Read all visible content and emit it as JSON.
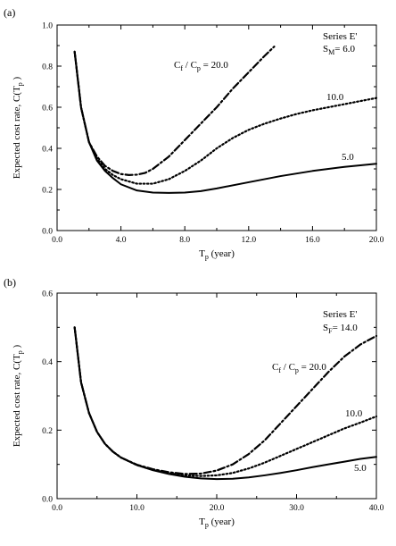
{
  "figure": {
    "panels": [
      "(a)",
      "(b)"
    ]
  },
  "chart_data": [
    {
      "type": "line",
      "panel_label": "(a)",
      "xlabel": {
        "main": "T",
        "sub": "p",
        "rest": " (year)"
      },
      "ylabel": {
        "text": "Expected cost rate,  C(T",
        "sub": "p",
        "close": " )"
      },
      "xlim": [
        0,
        20
      ],
      "ylim": [
        0,
        1.0
      ],
      "xticks": [
        0,
        4,
        8,
        12,
        16,
        20
      ],
      "xtick_labels": [
        "0.0",
        "4.0",
        "8.0",
        "12.0",
        "16.0",
        "20.0"
      ],
      "yticks": [
        0,
        0.2,
        0.4,
        0.6,
        0.8,
        1.0
      ],
      "ytick_labels": [
        "0.0",
        "0.2",
        "0.4",
        "0.6",
        "0.8",
        "1.0"
      ],
      "series_title": "Series E'",
      "param": {
        "symbol": "S",
        "sub": "M",
        "value": "= 6.0"
      },
      "ratio_label": {
        "c1": "C",
        "s1": "f",
        "mid": " / C",
        "s2": "p",
        "end": " = 20.0"
      },
      "series": [
        {
          "label": "5.0",
          "style": "solid",
          "x": [
            1.1,
            1.5,
            2,
            2.5,
            3,
            3.5,
            4,
            5,
            6,
            7,
            8,
            9,
            10,
            12,
            14,
            16,
            18,
            20
          ],
          "y": [
            0.87,
            0.6,
            0.43,
            0.34,
            0.29,
            0.255,
            0.225,
            0.195,
            0.185,
            0.183,
            0.185,
            0.192,
            0.205,
            0.235,
            0.265,
            0.29,
            0.31,
            0.325
          ]
        },
        {
          "label": "10.0",
          "style": "dotted",
          "x": [
            1.1,
            1.5,
            2,
            2.5,
            3,
            3.5,
            4,
            5,
            6,
            7,
            8,
            9,
            10,
            11,
            12,
            13,
            14,
            15,
            16,
            17,
            18,
            19,
            20
          ],
          "y": [
            0.87,
            0.6,
            0.43,
            0.35,
            0.3,
            0.27,
            0.25,
            0.228,
            0.228,
            0.25,
            0.29,
            0.34,
            0.4,
            0.45,
            0.49,
            0.52,
            0.545,
            0.567,
            0.585,
            0.6,
            0.615,
            0.63,
            0.645
          ]
        },
        {
          "label": "20.0",
          "style": "dashdot",
          "x": [
            1.1,
            1.5,
            2,
            2.5,
            3,
            3.5,
            4,
            4.5,
            5,
            5.5,
            6,
            7,
            8,
            9,
            10,
            11,
            12,
            13,
            13.6
          ],
          "y": [
            0.87,
            0.6,
            0.43,
            0.36,
            0.315,
            0.29,
            0.275,
            0.27,
            0.272,
            0.28,
            0.3,
            0.36,
            0.44,
            0.52,
            0.6,
            0.69,
            0.77,
            0.85,
            0.895
          ]
        }
      ]
    },
    {
      "type": "line",
      "panel_label": "(b)",
      "xlabel": {
        "main": "T",
        "sub": "p",
        "rest": " (year)"
      },
      "ylabel": {
        "text": "Expected cost rate,  C(T",
        "sub": "p",
        "close": " )"
      },
      "xlim": [
        0,
        40
      ],
      "ylim": [
        0,
        0.6
      ],
      "xticks": [
        0,
        10,
        20,
        30,
        40
      ],
      "xtick_labels": [
        "0.0",
        "10.0",
        "20.0",
        "30.0",
        "40.0"
      ],
      "yticks": [
        0,
        0.2,
        0.4,
        0.6
      ],
      "ytick_labels": [
        "0.0",
        "0.2",
        "0.4",
        "0.6"
      ],
      "series_title": "Series E'",
      "param": {
        "symbol": "S",
        "sub": "F",
        "value": "= 14.0"
      },
      "ratio_label": {
        "c1": "C",
        "s1": "f",
        "mid": " / C",
        "s2": "p",
        "end": " = 20.0"
      },
      "series": [
        {
          "label": "5.0",
          "style": "solid",
          "x": [
            2.2,
            3,
            4,
            5,
            6,
            7,
            8,
            10,
            12,
            14,
            16,
            18,
            20,
            22,
            24,
            26,
            28,
            30,
            32,
            34,
            36,
            38,
            40
          ],
          "y": [
            0.5,
            0.34,
            0.25,
            0.195,
            0.16,
            0.137,
            0.12,
            0.098,
            0.083,
            0.072,
            0.064,
            0.059,
            0.057,
            0.058,
            0.062,
            0.068,
            0.075,
            0.083,
            0.092,
            0.1,
            0.108,
            0.116,
            0.122
          ]
        },
        {
          "label": "10.0",
          "style": "dotted",
          "x": [
            2.2,
            3,
            4,
            5,
            6,
            7,
            8,
            10,
            12,
            14,
            16,
            18,
            20,
            22,
            24,
            26,
            28,
            30,
            32,
            34,
            36,
            38,
            40
          ],
          "y": [
            0.5,
            0.34,
            0.25,
            0.195,
            0.16,
            0.137,
            0.12,
            0.098,
            0.084,
            0.074,
            0.068,
            0.066,
            0.068,
            0.075,
            0.088,
            0.105,
            0.125,
            0.145,
            0.165,
            0.185,
            0.205,
            0.222,
            0.24
          ]
        },
        {
          "label": "20.0",
          "style": "dashdot",
          "x": [
            2.2,
            3,
            4,
            5,
            6,
            7,
            8,
            10,
            12,
            14,
            16,
            18,
            20,
            22,
            24,
            26,
            28,
            30,
            32,
            34,
            36,
            38,
            40
          ],
          "y": [
            0.5,
            0.34,
            0.25,
            0.195,
            0.16,
            0.137,
            0.12,
            0.099,
            0.086,
            0.077,
            0.072,
            0.073,
            0.082,
            0.1,
            0.13,
            0.17,
            0.22,
            0.27,
            0.32,
            0.37,
            0.415,
            0.45,
            0.475
          ]
        }
      ]
    }
  ]
}
